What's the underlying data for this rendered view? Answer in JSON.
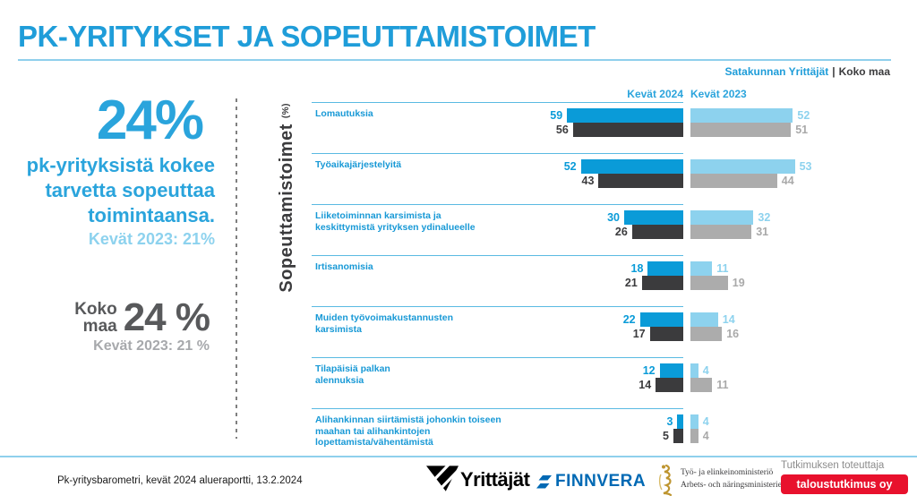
{
  "header": {
    "title": "PK-YRITYKSET JA SOPEUTTAMISTOIMET",
    "region": "Satakunnan Yrittäjät",
    "separator": "|",
    "scope": "Koko maa"
  },
  "left_panel": {
    "big_value": "24%",
    "statement": "pk-yrityksistä kokee tarvetta sopeuttaa toimintaansa.",
    "previous": "Kevät 2023: 21%",
    "koko_label": "Koko\nmaa",
    "koko_value": "24 %",
    "koko_previous": "Kevät 2023: 21 %"
  },
  "chart_data": {
    "type": "bar",
    "orientation": "horizontal, mirrored groups (2024 right-aligned to center axis, 2023 left-aligned)",
    "axis_label": "Sopeuttamistoimet ",
    "axis_unit": "(%)",
    "group_headers": [
      "Kevät 2024",
      "Kevät 2023"
    ],
    "categories": [
      "Lomautuksia",
      "Työaikajärjestelyitä",
      "Liiketoiminnan karsimista ja\nkeskittymistä yrityksen ydinalueelle",
      "Irtisanomisia",
      "Muiden työvoimakustannusten\nkarsimista",
      "Tilapäisiä palkan\nalennuksia",
      "Alihankinnan siirtämistä johonkin toiseen\nmaahan tai alihankintojen\nlopettamista/vähentämistä"
    ],
    "series": [
      {
        "name": "Satakunnan Yrittäjät, Kevät 2024",
        "color": "#0A9BD8",
        "values": [
          59,
          52,
          30,
          18,
          22,
          12,
          3
        ]
      },
      {
        "name": "Koko maa, Kevät 2024",
        "color": "#3B3B3D",
        "values": [
          56,
          43,
          26,
          21,
          17,
          14,
          5
        ]
      },
      {
        "name": "Satakunnan Yrittäjät, Kevät 2023",
        "color": "#8DD2EE",
        "values": [
          52,
          53,
          32,
          11,
          14,
          4,
          4
        ]
      },
      {
        "name": "Koko maa, Kevät 2023",
        "color": "#ACACAC",
        "values": [
          51,
          44,
          31,
          19,
          16,
          11,
          4
        ]
      }
    ],
    "xlim": [
      0,
      60
    ],
    "grid": false,
    "legend_position": "column headers above bar groups"
  },
  "footer": {
    "source": "Pk-yritysbarometri, kevät 2024 alueraportti, 13.2.2024",
    "logos": {
      "yrittajat": "Yrittäjät",
      "finnvera": "FINNVERA",
      "ministry_line1": "Työ- ja elinkeinoministeriö",
      "ministry_line2": "Arbets- och näringsministeriet",
      "research_label": "Tutkimuksen toteuttaja",
      "research_company": "taloustutkimus oy"
    }
  },
  "colors": {
    "title_blue": "#1F9DD9",
    "underline_blue": "#8FCFEC",
    "bar_blue_2024": "#0A9BD8",
    "bar_dark_2024": "#3B3B3D",
    "bar_lightblue_2023": "#8DD2EE",
    "bar_gray_2023": "#ACACAC",
    "row_line_blue": "#5ABAE2",
    "badge_red": "#E8112D"
  }
}
